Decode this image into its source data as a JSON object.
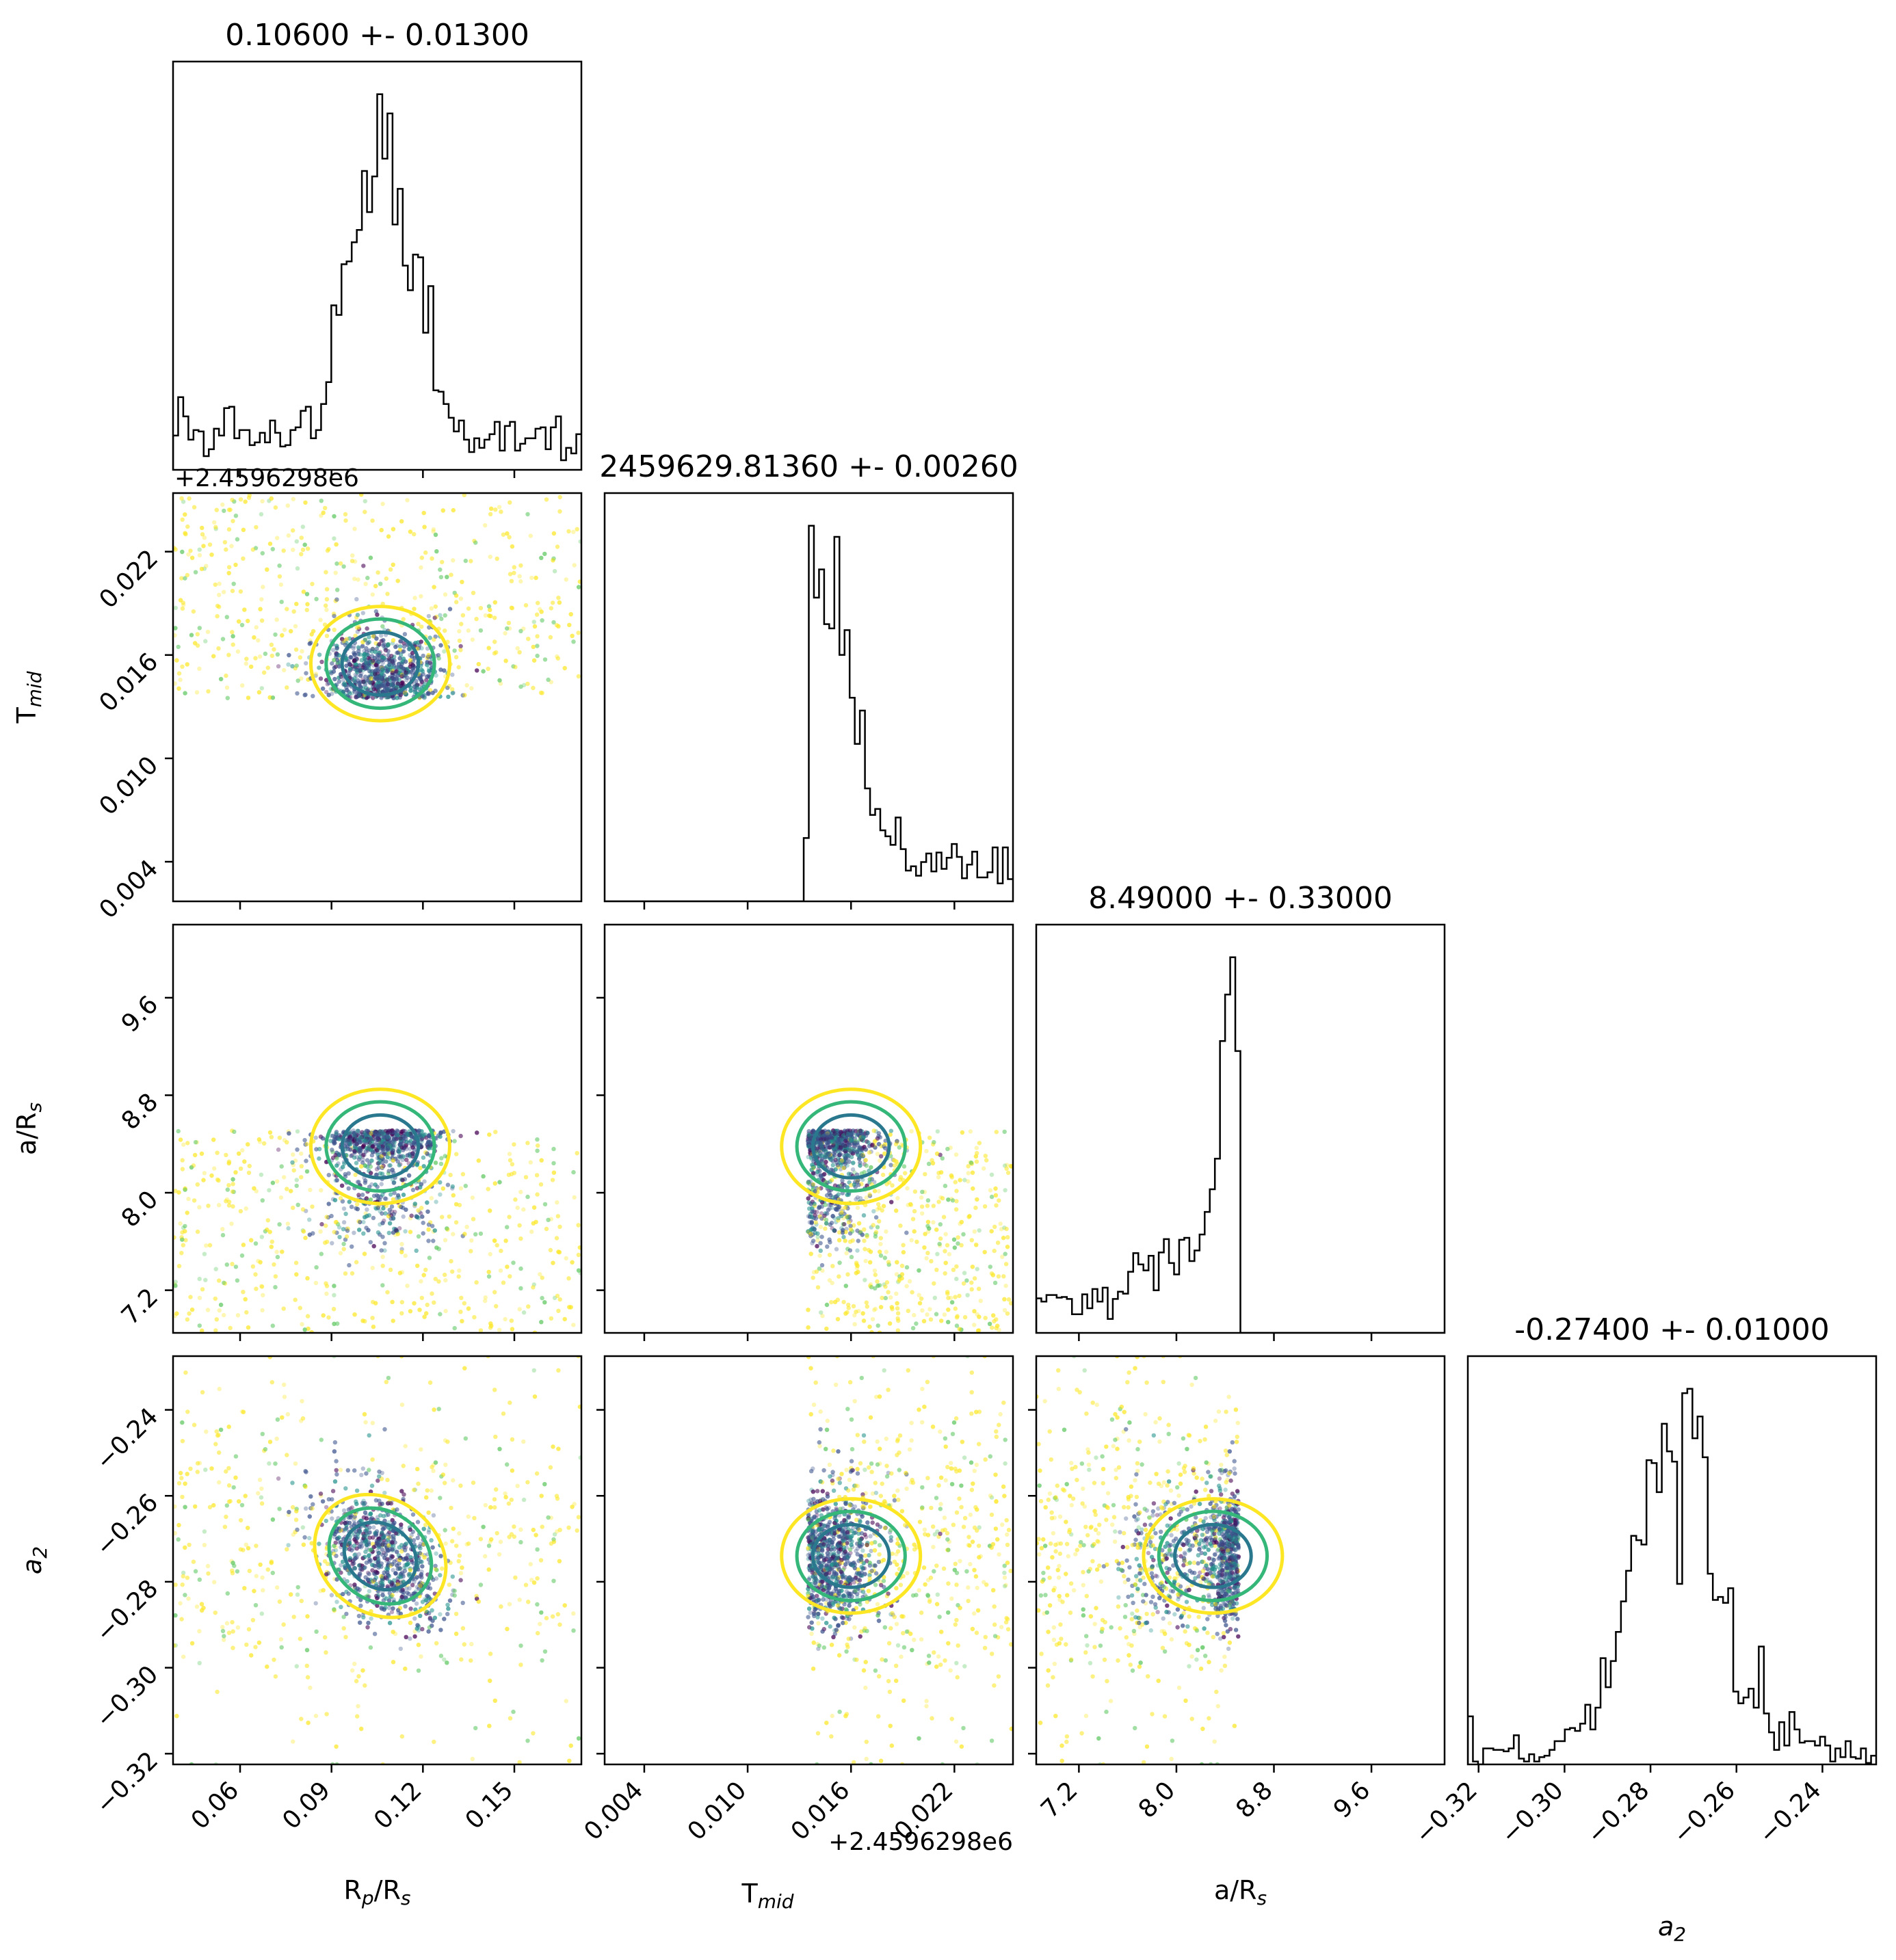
{
  "chart_data": {
    "type": "scatter",
    "kind": "corner plot (pairwise posterior samples with marginal histograms)",
    "parameters": [
      {
        "id": "rp",
        "label": "R$_p$/R$_s$",
        "label_parts": [
          [
            "R",
            ""
          ],
          [
            "p",
            "sub"
          ],
          [
            "/R",
            ""
          ],
          [
            "s",
            "sub"
          ]
        ],
        "title": "0.10600 +- 0.01300",
        "median": 0.106,
        "sigma": 0.013,
        "range": [
          0.038,
          0.172
        ],
        "ticks": [
          "0.06",
          "0.09",
          "0.12",
          "0.15"
        ],
        "tick_values": [
          0.06,
          0.09,
          0.12,
          0.15
        ],
        "offset": ""
      },
      {
        "id": "tmid",
        "label": "T$_{mid}$",
        "label_parts": [
          [
            "T",
            ""
          ],
          [
            "mid",
            "sub"
          ]
        ],
        "title": "2459629.81360 +- 0.00260",
        "median": 0.0136,
        "sigma": 0.0026,
        "range": [
          0.0017,
          0.0254
        ],
        "ticks": [
          "0.004",
          "0.010",
          "0.016",
          "0.022"
        ],
        "tick_values": [
          0.004,
          0.01,
          0.016,
          0.022
        ],
        "offset": "+2.4596298e6"
      },
      {
        "id": "ars",
        "label": "a/R$_s$",
        "label_parts": [
          [
            "a/R",
            ""
          ],
          [
            "s",
            "sub"
          ]
        ],
        "title": "8.49000 +- 0.33000",
        "median": 8.49,
        "sigma": 0.33,
        "range": [
          6.85,
          10.2
        ],
        "ticks": [
          "7.2",
          "8.0",
          "8.8",
          "9.6"
        ],
        "tick_values": [
          7.2,
          8.0,
          8.8,
          9.6
        ],
        "offset": ""
      },
      {
        "id": "a2",
        "label": "a$_2$",
        "label_parts": [
          [
            "a",
            "italic"
          ],
          [
            "2",
            "sub"
          ]
        ],
        "title": "-0.27400 +- 0.01000",
        "median": -0.274,
        "sigma": 0.01,
        "range": [
          -0.3225,
          -0.2275
        ],
        "ticks": [
          "−0.32",
          "−0.30",
          "−0.28",
          "−0.26",
          "−0.24"
        ],
        "tick_values": [
          -0.32,
          -0.3,
          -0.28,
          -0.26,
          -0.24
        ],
        "offset": ""
      }
    ],
    "marginals": {
      "rp": {
        "peak": 0.106,
        "width": 0.006,
        "tail": 0.13
      },
      "tmid": {
        "peak": 0.014,
        "lower_cut": 0.0135,
        "tail_scale": 0.003
      },
      "ars": {
        "peak": 8.45,
        "upper_cut": 8.51,
        "tail_scale": 0.35
      },
      "a2": {
        "peak": -0.274,
        "width": 0.007
      }
    },
    "scatter_colormap": [
      "#440154",
      "#3b528b",
      "#21918c",
      "#5ec962",
      "#fde725"
    ],
    "contour_colors": [
      "#2a788e",
      "#35b779",
      "#fde725"
    ],
    "grid": false,
    "legend": "none"
  }
}
